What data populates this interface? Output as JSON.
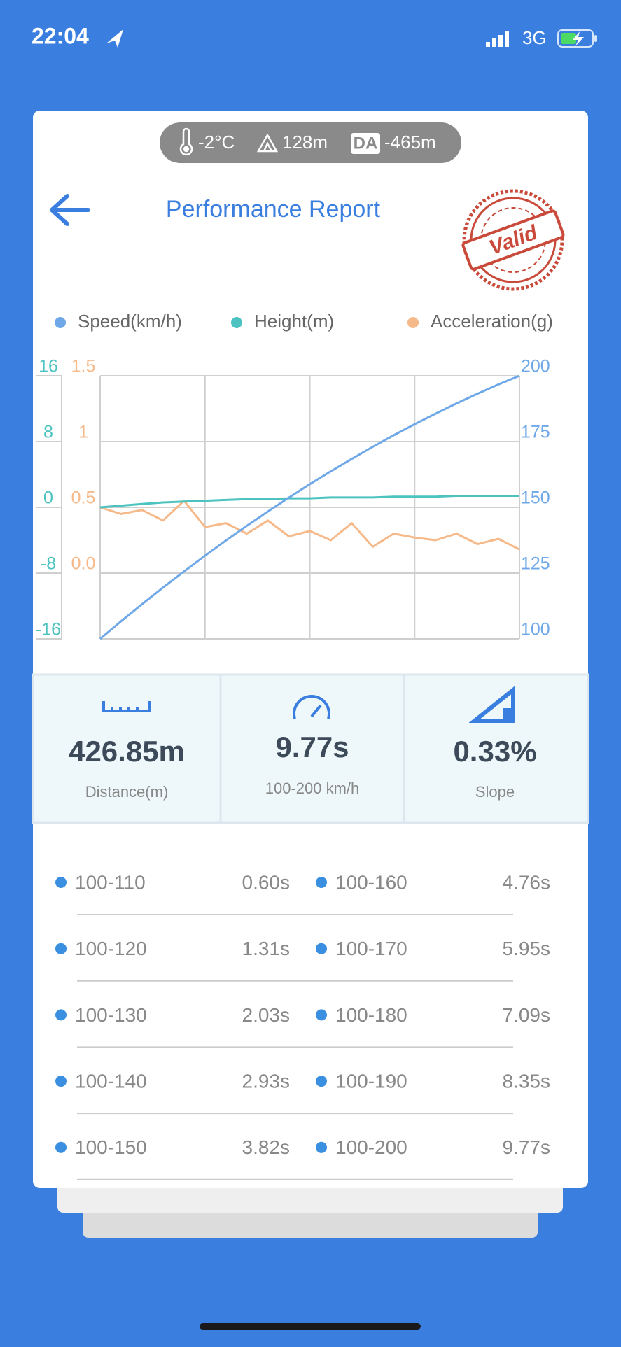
{
  "status_bar": {
    "time": "22:04",
    "network": "3G"
  },
  "conditions": {
    "temperature": "-2°C",
    "altitude": "128m",
    "da_label": "DA",
    "density_altitude": "-465m"
  },
  "header": {
    "title": "Performance Report",
    "stamp": "Valid"
  },
  "chart_data": {
    "type": "line",
    "grid": true,
    "legend": "top",
    "series": [
      {
        "name": "Speed(km/h)",
        "color": "#6fa8e8",
        "ylim": [
          100,
          200
        ],
        "yticks": [
          200,
          175,
          150,
          125,
          100
        ],
        "values": [
          100,
          106.7,
          113.2,
          119.5,
          125.6,
          131.6,
          137.4,
          143.0,
          148.4,
          153.7,
          158.8,
          163.7,
          168.4,
          173.0,
          177.4,
          181.6,
          185.6,
          189.5,
          193.2,
          196.7,
          200
        ]
      },
      {
        "name": "Height(m)",
        "color": "#4cc3c0",
        "ylim": [
          -16,
          16
        ],
        "yticks": [
          16,
          8,
          0,
          -8,
          -16
        ],
        "values": [
          0,
          0.2,
          0.4,
          0.6,
          0.7,
          0.8,
          0.9,
          1.0,
          1.0,
          1.1,
          1.1,
          1.2,
          1.2,
          1.2,
          1.3,
          1.3,
          1.3,
          1.4,
          1.4,
          1.4,
          1.4
        ]
      },
      {
        "name": "Acceleration(g)",
        "color": "#f5b98a",
        "ylim": [
          -0.5,
          1.5
        ],
        "yticks": [
          1.5,
          1,
          0.5,
          {
            "value": 0,
            "label": "0.0"
          }
        ],
        "values": [
          0.5,
          0.45,
          0.48,
          0.4,
          0.55,
          0.35,
          0.38,
          0.3,
          0.4,
          0.28,
          0.32,
          0.25,
          0.38,
          0.2,
          0.3,
          0.27,
          0.25,
          0.3,
          0.22,
          0.26,
          0.18
        ]
      }
    ]
  },
  "summary": [
    {
      "value": "426.85m",
      "label": "Distance(m)"
    },
    {
      "value": "9.77s",
      "label": "100-200 km/h"
    },
    {
      "value": "0.33%",
      "label": "Slope"
    }
  ],
  "splits": [
    {
      "range": "100-110",
      "time": "0.60s"
    },
    {
      "range": "100-120",
      "time": "1.31s"
    },
    {
      "range": "100-130",
      "time": "2.03s"
    },
    {
      "range": "100-140",
      "time": "2.93s"
    },
    {
      "range": "100-150",
      "time": "3.82s"
    },
    {
      "range": "100-160",
      "time": "4.76s"
    },
    {
      "range": "100-170",
      "time": "5.95s"
    },
    {
      "range": "100-180",
      "time": "7.09s"
    },
    {
      "range": "100-190",
      "time": "8.35s"
    },
    {
      "range": "100-200",
      "time": "9.77s"
    }
  ]
}
